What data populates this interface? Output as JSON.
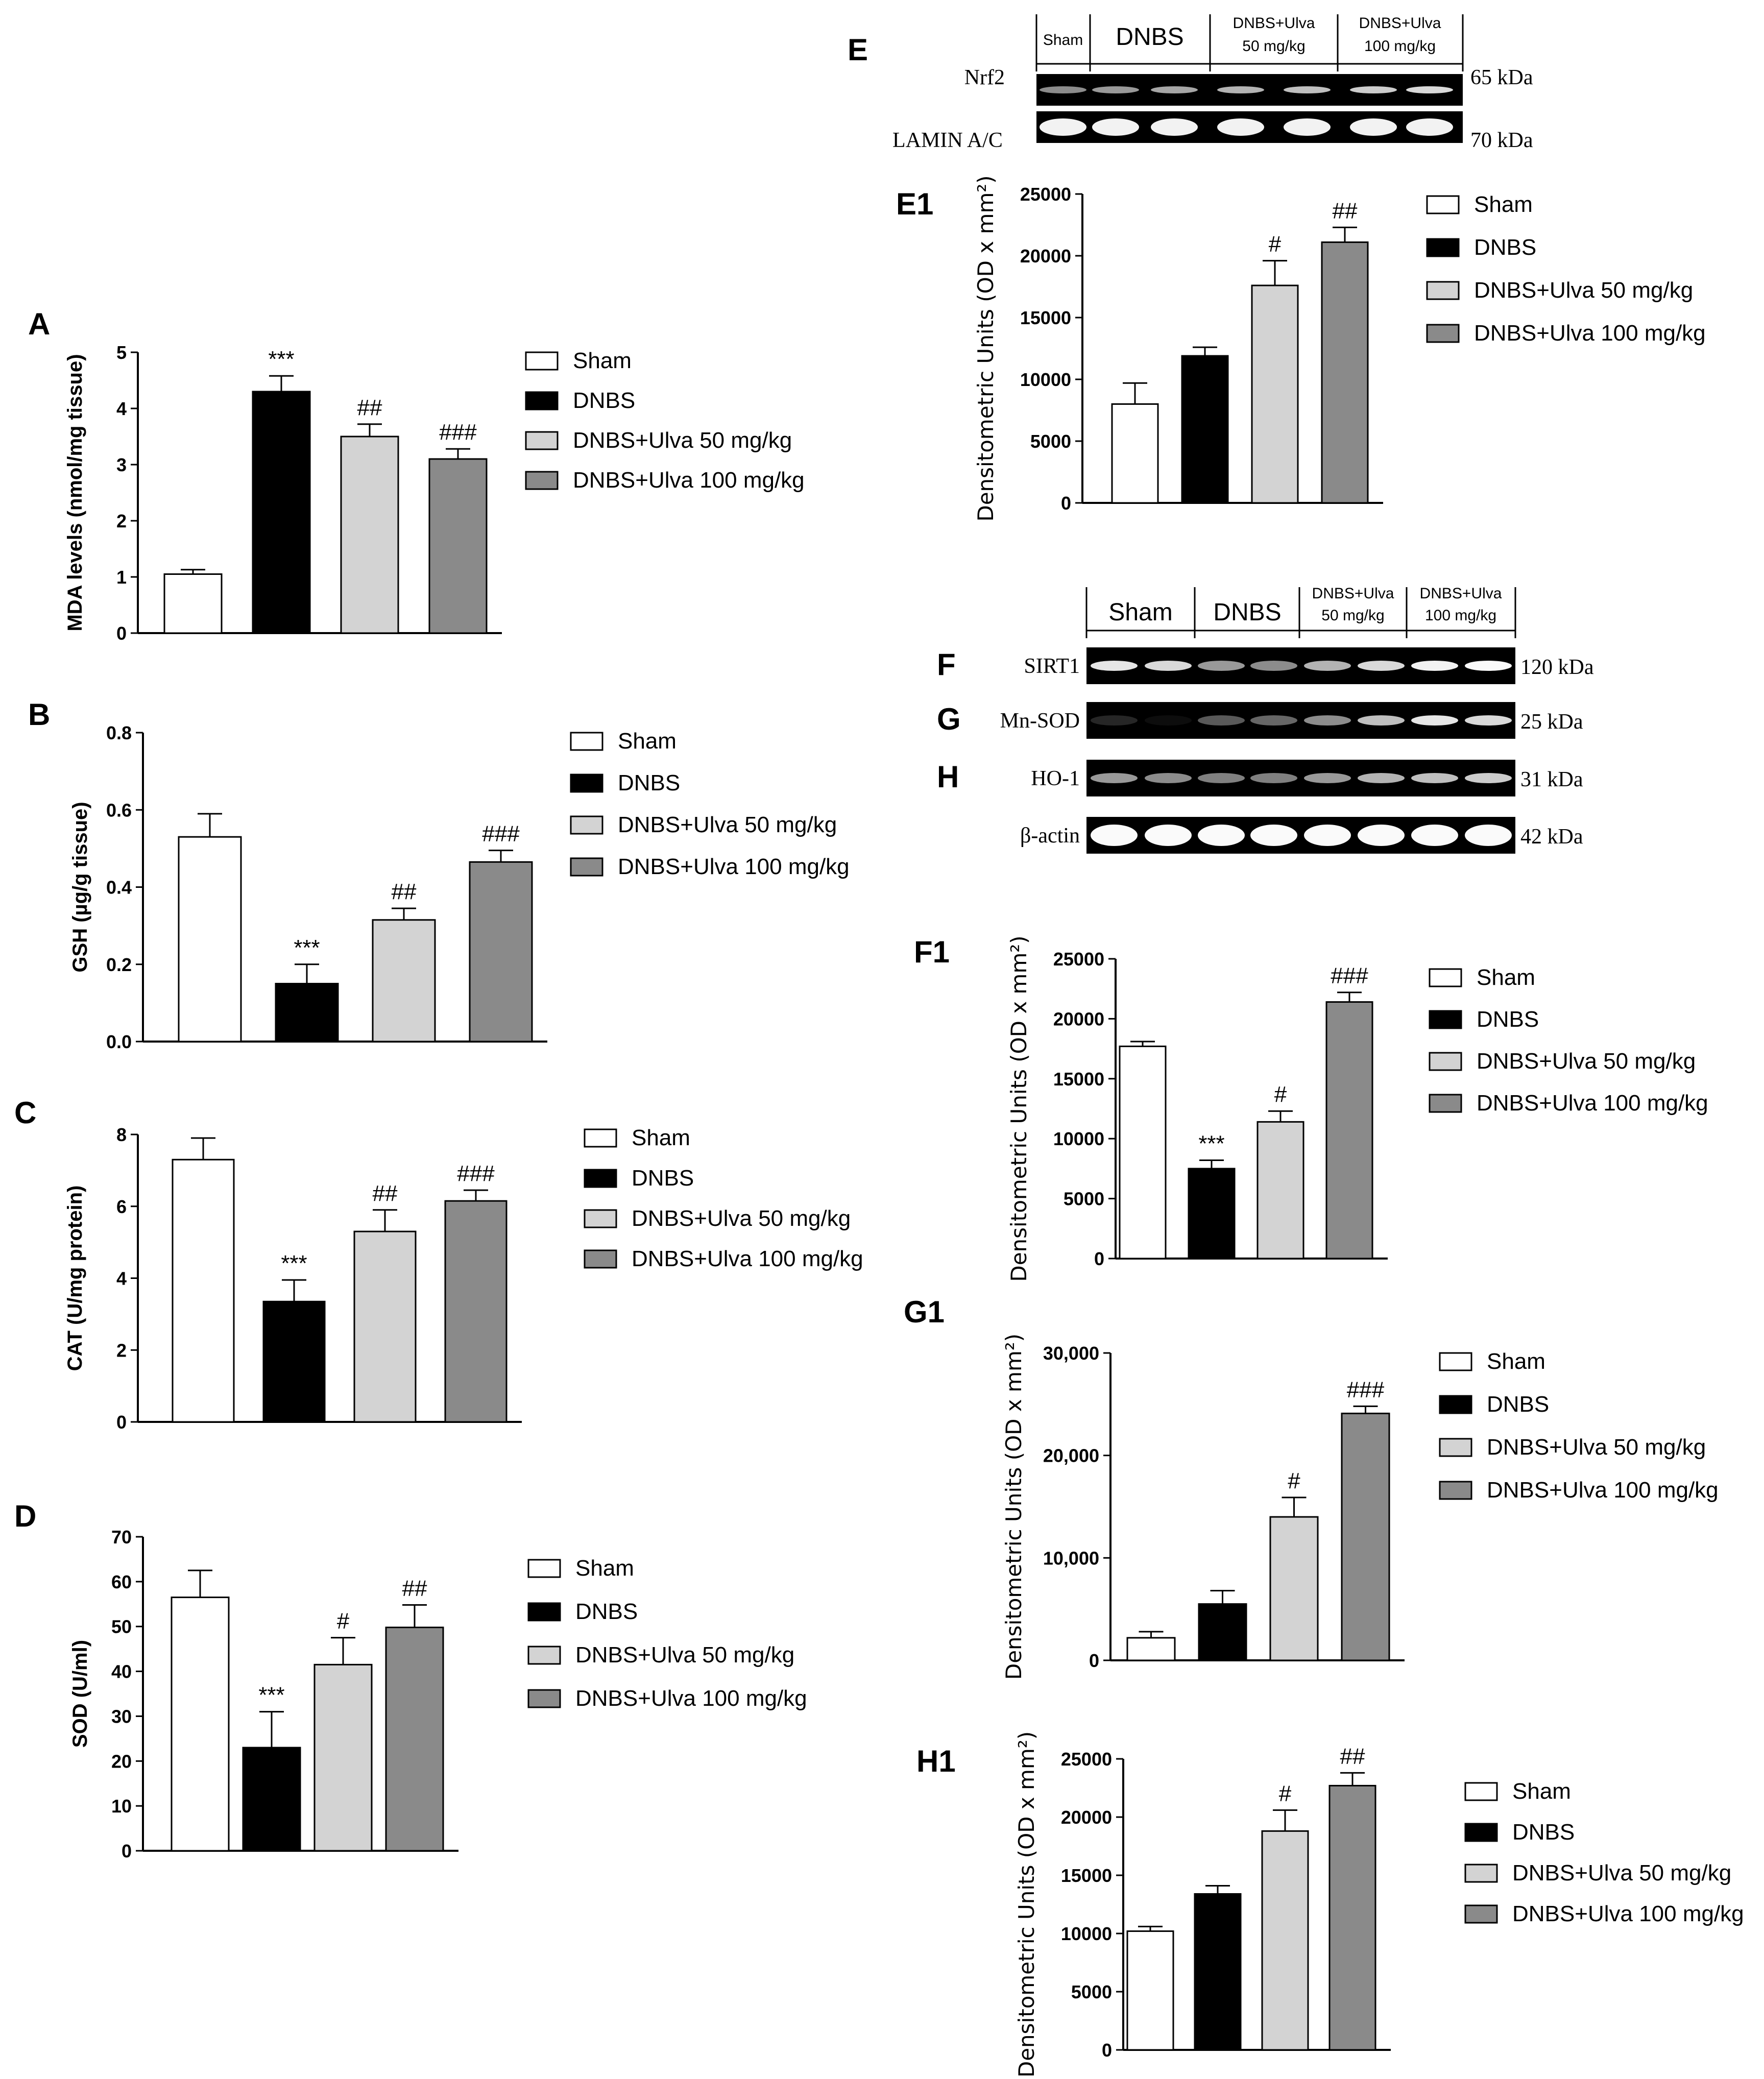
{
  "colors": {
    "Sham": "#ffffff",
    "DNBS": "#000000",
    "DNBS+Ulva 50 mg/kg": "#d3d3d3",
    "DNBS+Ulva 100 mg/kg": "#8a8a8a"
  },
  "legend": [
    "Sham",
    "DNBS",
    "DNBS+Ulva 50 mg/kg",
    "DNBS+Ulva 100 mg/kg"
  ],
  "chart_data": [
    {
      "id": "A",
      "type": "bar",
      "panel": "A",
      "ylabel": "MDA levels (nmol/mg tissue)",
      "categories": [
        "Sham",
        "DNBS",
        "DNBS+Ulva 50 mg/kg",
        "DNBS+Ulva 100 mg/kg"
      ],
      "values": [
        1.05,
        4.3,
        3.5,
        3.1
      ],
      "errors": [
        0.08,
        0.28,
        0.22,
        0.18
      ],
      "annotations": [
        "",
        "***",
        "##",
        "###"
      ],
      "ylim": [
        0,
        5
      ],
      "yticks": [
        "0",
        "1",
        "2",
        "3",
        "4",
        "5"
      ]
    },
    {
      "id": "B",
      "type": "bar",
      "panel": "B",
      "ylabel": "GSH (µg/g tissue)",
      "categories": [
        "Sham",
        "DNBS",
        "DNBS+Ulva 50 mg/kg",
        "DNBS+Ulva 100 mg/kg"
      ],
      "values": [
        0.53,
        0.15,
        0.315,
        0.465
      ],
      "errors": [
        0.06,
        0.05,
        0.03,
        0.03
      ],
      "annotations": [
        "",
        "***",
        "##",
        "###"
      ],
      "ylim": [
        0,
        0.8
      ],
      "yticks": [
        "0.0",
        "0.2",
        "0.4",
        "0.6",
        "0.8"
      ]
    },
    {
      "id": "C",
      "type": "bar",
      "panel": "C",
      "ylabel": "CAT (U/mg protein)",
      "categories": [
        "Sham",
        "DNBS",
        "DNBS+Ulva 50 mg/kg",
        "DNBS+Ulva 100 mg/kg"
      ],
      "values": [
        7.3,
        3.35,
        5.3,
        6.15
      ],
      "errors": [
        0.6,
        0.6,
        0.6,
        0.3
      ],
      "annotations": [
        "",
        "***",
        "##",
        "###"
      ],
      "ylim": [
        0,
        8
      ],
      "yticks": [
        "0",
        "2",
        "4",
        "6",
        "8"
      ]
    },
    {
      "id": "D",
      "type": "bar",
      "panel": "D",
      "ylabel": "SOD (U/ml)",
      "categories": [
        "Sham",
        "DNBS",
        "DNBS+Ulva 50 mg/kg",
        "DNBS+Ulva 100 mg/kg"
      ],
      "values": [
        56.5,
        23.0,
        41.5,
        49.8
      ],
      "errors": [
        6.0,
        8.0,
        6.0,
        5.0
      ],
      "annotations": [
        "",
        "***",
        "#",
        "##"
      ],
      "ylim": [
        0,
        70
      ],
      "yticks": [
        "0",
        "10",
        "20",
        "30",
        "40",
        "50",
        "60",
        "70"
      ]
    },
    {
      "id": "E1",
      "type": "bar",
      "panel": "E1",
      "ylabel": "Densitometric Units (OD x mm²)",
      "categories": [
        "Sham",
        "DNBS",
        "DNBS+Ulva 50 mg/kg",
        "DNBS+Ulva 100 mg/kg"
      ],
      "values": [
        8000,
        11900,
        17600,
        21100
      ],
      "errors": [
        1700,
        700,
        2000,
        1200
      ],
      "annotations": [
        "",
        "",
        "#",
        "##"
      ],
      "ylim": [
        0,
        25000
      ],
      "yticks": [
        "0",
        "5000",
        "10000",
        "15000",
        "20000",
        "25000"
      ]
    },
    {
      "id": "F1",
      "type": "bar",
      "panel": "F1",
      "ylabel": "Densitometric Units (OD x mm²)",
      "categories": [
        "Sham",
        "DNBS",
        "DNBS+Ulva 50 mg/kg",
        "DNBS+Ulva 100 mg/kg"
      ],
      "values": [
        17700,
        7500,
        11400,
        21400
      ],
      "errors": [
        400,
        700,
        900,
        800
      ],
      "annotations": [
        "",
        "***",
        "#",
        "###"
      ],
      "ylim": [
        0,
        25000
      ],
      "yticks": [
        "0",
        "5000",
        "10000",
        "15000",
        "20000",
        "25000"
      ]
    },
    {
      "id": "G1",
      "type": "bar",
      "panel": "G1",
      "ylabel": "Densitometric Units (OD x mm²)",
      "categories": [
        "Sham",
        "DNBS",
        "DNBS+Ulva 50 mg/kg",
        "DNBS+Ulva 100 mg/kg"
      ],
      "values": [
        2200,
        5500,
        14000,
        24100
      ],
      "errors": [
        600,
        1300,
        1900,
        700
      ],
      "annotations": [
        "",
        "",
        "#",
        "###"
      ],
      "ylim": [
        0,
        30000
      ],
      "yticks": [
        "0",
        "10,000",
        "20,000",
        "30,000"
      ]
    },
    {
      "id": "H1",
      "type": "bar",
      "panel": "H1",
      "ylabel": "Densitometric Units (OD x mm²)",
      "categories": [
        "Sham",
        "DNBS",
        "DNBS+Ulva 50 mg/kg",
        "DNBS+Ulva 100 mg/kg"
      ],
      "values": [
        10200,
        13400,
        18800,
        22700
      ],
      "errors": [
        400,
        700,
        1800,
        1100
      ],
      "annotations": [
        "",
        "",
        "#",
        "##"
      ],
      "ylim": [
        0,
        25000
      ],
      "yticks": [
        "0",
        "5000",
        "10000",
        "15000",
        "20000",
        "25000"
      ]
    }
  ],
  "blots": {
    "E": {
      "panel": "E",
      "headers": [
        "Sham",
        "DNBS",
        "DNBS+Ulva\n50 mg/kg",
        "DNBS+Ulva\n100 mg/kg"
      ],
      "rows": [
        {
          "label": "Nrf2",
          "kda": "65 kDa"
        },
        {
          "label": "LAMIN A/C",
          "kda": "70 kDa"
        }
      ]
    },
    "FGH": {
      "headers": [
        "Sham",
        "DNBS",
        "DNBS+Ulva\n50 mg/kg",
        "DNBS+Ulva\n100 mg/kg"
      ],
      "rows": [
        {
          "panel": "F",
          "label": "SIRT1",
          "kda": "120 kDa"
        },
        {
          "panel": "G",
          "label": "Mn-SOD",
          "kda": "25 kDa"
        },
        {
          "panel": "H",
          "label": "HO-1",
          "kda": "31 kDa"
        },
        {
          "panel": "",
          "label": "β-actin",
          "kda": "42 kDa"
        }
      ]
    }
  }
}
